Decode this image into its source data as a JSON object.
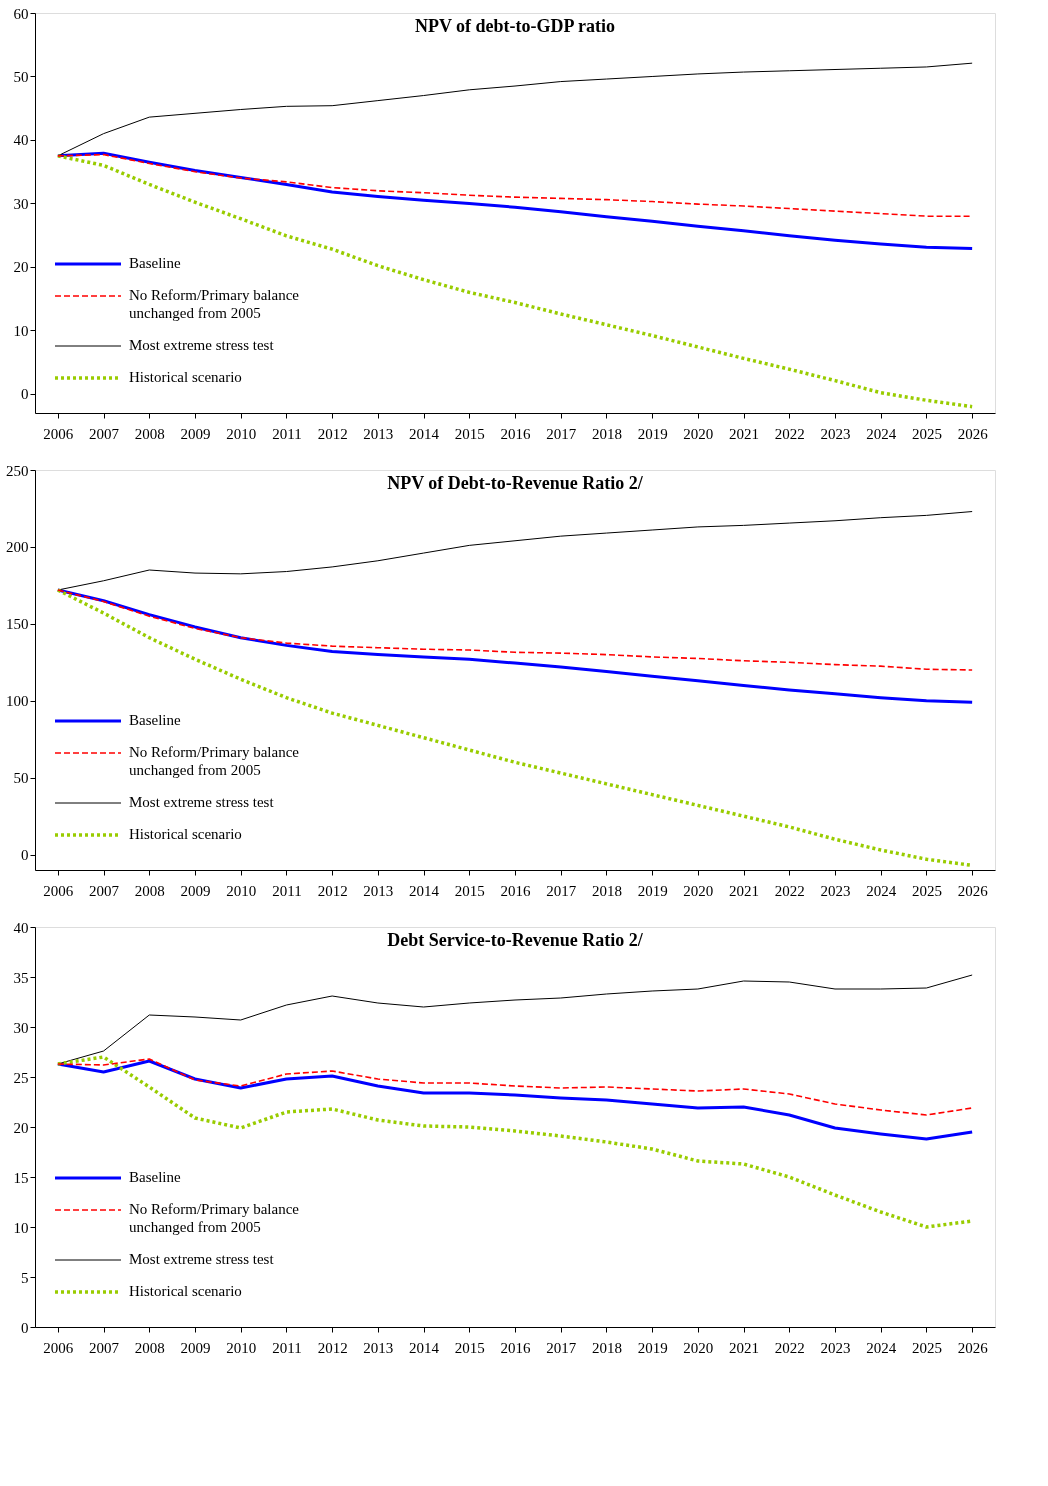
{
  "chart_data": [
    {
      "type": "line",
      "title": "NPV of debt-to-GDP ratio",
      "categories": [
        "2006",
        "2007",
        "2008",
        "2009",
        "2010",
        "2011",
        "2012",
        "2013",
        "2014",
        "2015",
        "2016",
        "2017",
        "2018",
        "2019",
        "2020",
        "2021",
        "2022",
        "2023",
        "2024",
        "2025",
        "2026"
      ],
      "ylim": [
        -3,
        60
      ],
      "yticks": [
        0,
        10,
        20,
        30,
        40,
        50,
        60
      ],
      "grid": false,
      "legend": "bottom left",
      "series": [
        {
          "name": "Baseline",
          "color": "#0000ff",
          "line_style": "solid",
          "values": [
            37.5,
            37.9,
            36.5,
            35.2,
            34.1,
            33.0,
            31.8,
            31.1,
            30.5,
            30.0,
            29.4,
            28.7,
            27.9,
            27.2,
            26.4,
            25.7,
            24.9,
            24.2,
            23.6,
            23.1,
            22.9
          ]
        },
        {
          "name": "No Reform/Primary balance unchanged from 2005",
          "color": "#ff0000",
          "line_style": "dashed",
          "values": [
            37.5,
            37.7,
            36.3,
            35.0,
            34.0,
            33.4,
            32.5,
            32.0,
            31.7,
            31.3,
            31.0,
            30.8,
            30.6,
            30.3,
            29.9,
            29.6,
            29.2,
            28.8,
            28.4,
            28.0,
            28.0
          ]
        },
        {
          "name": "Most extreme stress test",
          "color": "#000000",
          "line_style": "solid",
          "values": [
            37.5,
            41.0,
            43.6,
            44.2,
            44.8,
            45.3,
            45.4,
            46.2,
            47.0,
            47.9,
            48.5,
            49.2,
            49.6,
            50.0,
            50.4,
            50.7,
            50.9,
            51.1,
            51.3,
            51.5,
            52.1
          ]
        },
        {
          "name": "Historical scenario",
          "color": "#99cc00",
          "line_style": "dotted",
          "values": [
            37.5,
            36.0,
            33.0,
            30.2,
            27.6,
            24.9,
            22.8,
            20.2,
            18.0,
            16.0,
            14.4,
            12.6,
            10.9,
            9.2,
            7.4,
            5.6,
            3.9,
            2.1,
            0.2,
            -1.0,
            -2.0
          ]
        }
      ]
    },
    {
      "type": "line",
      "title": "NPV of Debt-to-Revenue Ratio 2/",
      "categories": [
        "2006",
        "2007",
        "2008",
        "2009",
        "2010",
        "2011",
        "2012",
        "2013",
        "2014",
        "2015",
        "2016",
        "2017",
        "2018",
        "2019",
        "2020",
        "2021",
        "2022",
        "2023",
        "2024",
        "2025",
        "2026"
      ],
      "ylim": [
        -10,
        250
      ],
      "yticks": [
        0,
        50,
        100,
        150,
        200,
        250
      ],
      "grid": false,
      "legend": "bottom left",
      "series": [
        {
          "name": "Baseline",
          "color": "#0000ff",
          "line_style": "solid",
          "values": [
            172,
            165,
            156,
            148,
            141,
            136,
            132,
            130,
            128.5,
            127,
            124.5,
            122,
            119,
            116,
            113,
            110,
            107,
            104.5,
            102,
            100,
            99
          ]
        },
        {
          "name": "No Reform/Primary balance unchanged from 2005",
          "color": "#ff0000",
          "line_style": "dashed",
          "values": [
            172,
            164.5,
            155,
            147,
            141,
            137.5,
            135.5,
            134.5,
            133.5,
            133,
            131.5,
            131,
            130,
            128.5,
            127.5,
            126,
            125,
            123.5,
            122.5,
            120.5,
            120
          ]
        },
        {
          "name": "Most extreme stress test",
          "color": "#000000",
          "line_style": "solid",
          "values": [
            172,
            178,
            185,
            183,
            182.5,
            184,
            187,
            191,
            196,
            201,
            204,
            207,
            209,
            211,
            213,
            214,
            215.5,
            217,
            219,
            220.5,
            223
          ]
        },
        {
          "name": "Historical scenario",
          "color": "#99cc00",
          "line_style": "dotted",
          "values": [
            172,
            157,
            141,
            127,
            114,
            102,
            92,
            84,
            76,
            68,
            60,
            53,
            46,
            39,
            32,
            25,
            18,
            10,
            3,
            -3,
            -7
          ]
        }
      ]
    },
    {
      "type": "line",
      "title": "Debt Service-to-Revenue Ratio 2/",
      "categories": [
        "2006",
        "2007",
        "2008",
        "2009",
        "2010",
        "2011",
        "2012",
        "2013",
        "2014",
        "2015",
        "2016",
        "2017",
        "2018",
        "2019",
        "2020",
        "2021",
        "2022",
        "2023",
        "2024",
        "2025",
        "2026"
      ],
      "ylim": [
        0,
        40
      ],
      "yticks": [
        0,
        5,
        10,
        15,
        20,
        25,
        30,
        35,
        40
      ],
      "grid": false,
      "legend": "bottom left",
      "series": [
        {
          "name": "Baseline",
          "color": "#0000ff",
          "line_style": "solid",
          "values": [
            26.3,
            25.5,
            26.6,
            24.8,
            23.9,
            24.8,
            25.1,
            24.1,
            23.4,
            23.4,
            23.2,
            22.9,
            22.7,
            22.3,
            21.9,
            22.0,
            21.2,
            19.9,
            19.3,
            18.8,
            19.5
          ]
        },
        {
          "name": "No Reform/Primary balance unchanged from 2005",
          "color": "#ff0000",
          "line_style": "dashed",
          "values": [
            26.3,
            26.2,
            26.8,
            24.7,
            24.1,
            25.3,
            25.6,
            24.8,
            24.4,
            24.4,
            24.1,
            23.9,
            24.0,
            23.8,
            23.6,
            23.8,
            23.3,
            22.3,
            21.7,
            21.2,
            21.9
          ]
        },
        {
          "name": "Most extreme stress test",
          "color": "#000000",
          "line_style": "solid",
          "values": [
            26.3,
            27.6,
            31.2,
            31.0,
            30.7,
            32.2,
            33.1,
            32.4,
            32.0,
            32.4,
            32.7,
            32.9,
            33.3,
            33.6,
            33.8,
            34.6,
            34.5,
            33.8,
            33.8,
            33.9,
            35.2
          ]
        },
        {
          "name": "Historical scenario",
          "color": "#99cc00",
          "line_style": "dotted",
          "values": [
            26.3,
            27.0,
            24.0,
            20.9,
            19.9,
            21.5,
            21.8,
            20.7,
            20.1,
            20.0,
            19.6,
            19.1,
            18.5,
            17.8,
            16.6,
            16.3,
            15.0,
            13.2,
            11.5,
            10.0,
            10.6
          ]
        }
      ]
    }
  ]
}
